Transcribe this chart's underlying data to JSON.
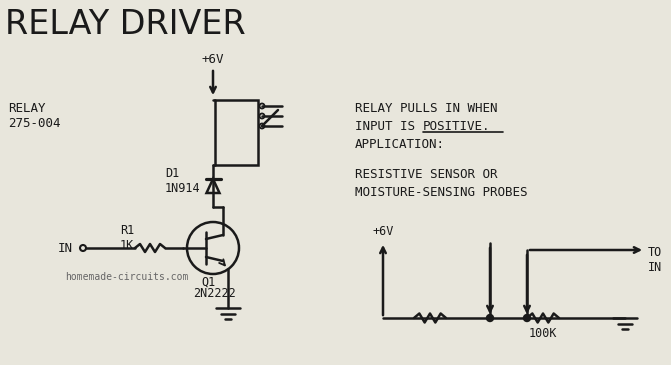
{
  "title": "RELAY DRIVER",
  "background_color": "#e8e6dc",
  "line_color": "#1a1a1a",
  "text_color": "#1a1a1a",
  "labels": {
    "relay": "RELAY\n275-004",
    "d1": "D1\n1N914",
    "r1": "R1\n1K",
    "in": "IN",
    "plus6v_top": "+6V",
    "plus6v_bot": "+6V",
    "100k": "100K",
    "to_in": "TO\nIN",
    "website": "homemade-circuits.com",
    "relay_line1": "RELAY PULLS IN WHEN",
    "relay_line2": "INPUT IS ",
    "relay_positive": "POSITIVE.",
    "relay_line3": "APPLICATION:",
    "sensor_line1": "RESISTIVE SENSOR OR",
    "sensor_line2": "MOISTURE-SENSING PROBES",
    "q1": "Q1",
    "q1_num": "2N2222"
  }
}
